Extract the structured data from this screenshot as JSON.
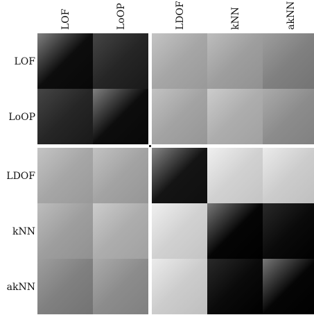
{
  "chart_data": {
    "type": "heatmap",
    "title": "",
    "xlabel": "",
    "ylabel": "",
    "x_labels": [
      "LOF",
      "LoOP",
      "LDOF",
      "kNN",
      "akNN"
    ],
    "y_labels": [
      "LOF",
      "LoOP",
      "LDOF",
      "kNN",
      "akNN"
    ],
    "colormap": "gray (darker = more similar)",
    "block_values": [
      [
        0.05,
        0.15,
        0.65,
        0.62,
        0.5
      ],
      [
        0.15,
        0.05,
        0.64,
        0.68,
        0.55
      ],
      [
        0.65,
        0.64,
        0.08,
        0.82,
        0.8
      ],
      [
        0.62,
        0.68,
        0.82,
        0.02,
        0.04
      ],
      [
        0.5,
        0.55,
        0.8,
        0.04,
        0.02
      ]
    ],
    "separator_after_index": 1
  }
}
